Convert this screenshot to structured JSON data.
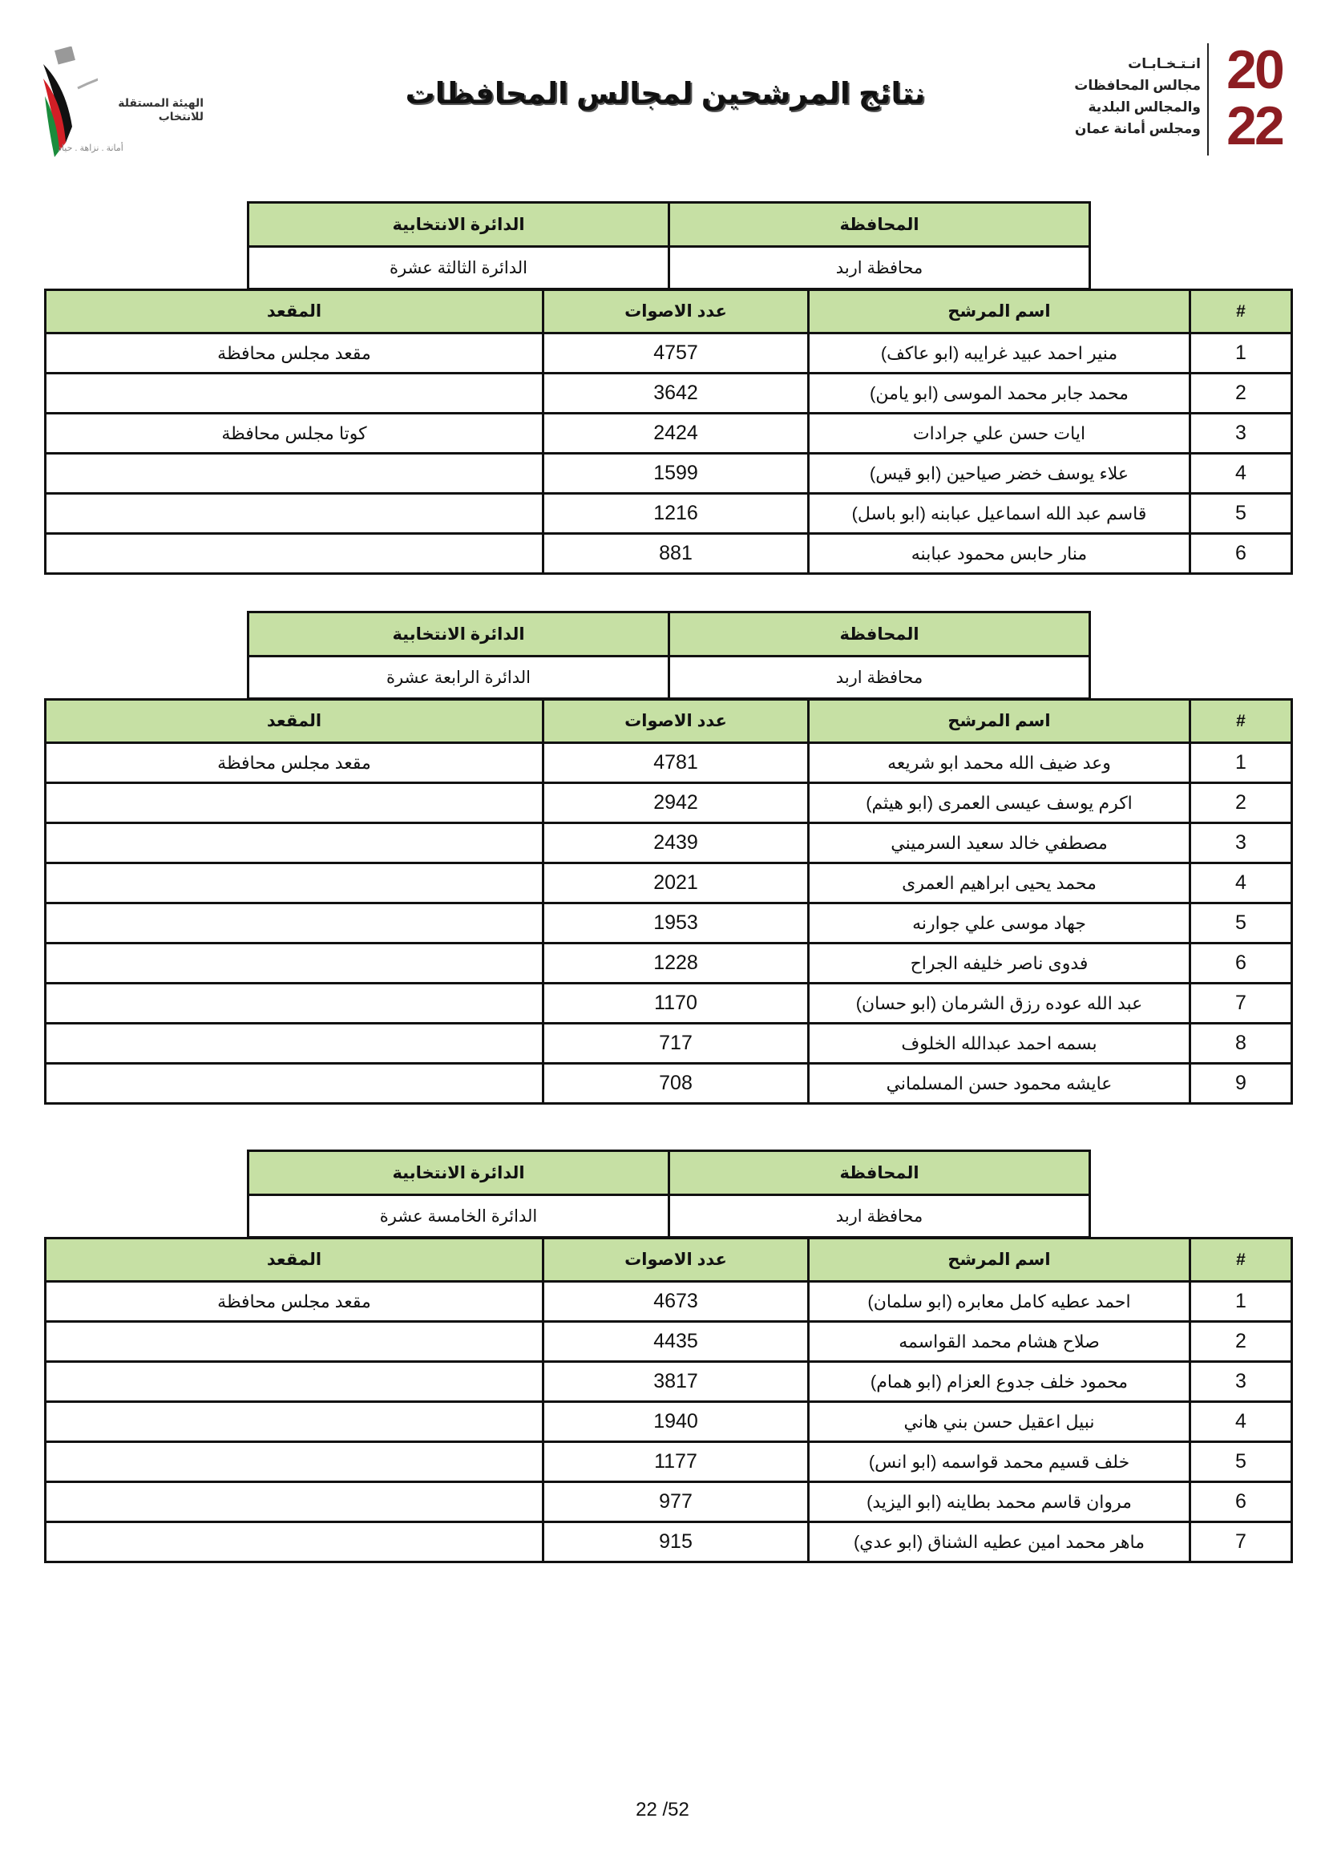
{
  "header": {
    "title": "نتائج المرشحين لمجالس المحافظات",
    "left_logo": {
      "name": "الهيئة المستقلة للانتخاب",
      "motto": "أمانة . نزاهة . حياد"
    },
    "right_logo": {
      "lines": [
        "انـتـخـابـات",
        "مجالس المحافظات",
        "والمجالس البلدية",
        "ومجلس أمانة عمان"
      ],
      "year": "2022"
    }
  },
  "labels": {
    "province": "المحافظة",
    "district": "الدائرة الانتخابية",
    "col_num": "#",
    "col_name": "اسم المرشح",
    "col_votes": "عدد الاصوات",
    "col_seat": "المقعد"
  },
  "colors": {
    "header_fill": "#c6e0a4",
    "brand_red": "#8c1d22"
  },
  "sections": [
    {
      "province": "محافظة اربد",
      "district": "الدائرة الثالثة عشرة",
      "rows": [
        {
          "n": "1",
          "name": "منير احمد عبيد غرايبه (ابو عاكف)",
          "votes": "4757",
          "seat": "مقعد مجلس محافظة"
        },
        {
          "n": "2",
          "name": "محمد جابر محمد الموسى (ابو يامن)",
          "votes": "3642",
          "seat": ""
        },
        {
          "n": "3",
          "name": "ايات حسن علي جرادات",
          "votes": "2424",
          "seat": "كوتا مجلس محافظة"
        },
        {
          "n": "4",
          "name": "علاء يوسف خضر صياحين (ابو قيس)",
          "votes": "1599",
          "seat": ""
        },
        {
          "n": "5",
          "name": "قاسم عبد الله اسماعيل عبابنه (ابو باسل)",
          "votes": "1216",
          "seat": ""
        },
        {
          "n": "6",
          "name": "منار حابس محمود عبابنه",
          "votes": "881",
          "seat": ""
        }
      ]
    },
    {
      "province": "محافظة اربد",
      "district": "الدائرة الرابعة عشرة",
      "rows": [
        {
          "n": "1",
          "name": "وعد ضيف الله محمد ابو شريعه",
          "votes": "4781",
          "seat": "مقعد مجلس محافظة"
        },
        {
          "n": "2",
          "name": "اكرم يوسف عيسى العمرى (ابو هيثم)",
          "votes": "2942",
          "seat": ""
        },
        {
          "n": "3",
          "name": "مصطفي خالد سعيد السرميني",
          "votes": "2439",
          "seat": ""
        },
        {
          "n": "4",
          "name": "محمد يحيى ابراهيم العمرى",
          "votes": "2021",
          "seat": ""
        },
        {
          "n": "5",
          "name": "جهاد موسى علي جوارنه",
          "votes": "1953",
          "seat": ""
        },
        {
          "n": "6",
          "name": "فدوى ناصر خليفه الجراح",
          "votes": "1228",
          "seat": ""
        },
        {
          "n": "7",
          "name": "عبد الله عوده رزق الشرمان (ابو حسان)",
          "votes": "1170",
          "seat": ""
        },
        {
          "n": "8",
          "name": "بسمه احمد عبدالله الخلوف",
          "votes": "717",
          "seat": ""
        },
        {
          "n": "9",
          "name": "عايشه محمود حسن المسلماني",
          "votes": "708",
          "seat": ""
        }
      ]
    },
    {
      "province": "محافظة اربد",
      "district": "الدائرة الخامسة عشرة",
      "rows": [
        {
          "n": "1",
          "name": "احمد عطيه كامل معابره (ابو سلمان)",
          "votes": "4673",
          "seat": "مقعد مجلس محافظة"
        },
        {
          "n": "2",
          "name": "صلاح هشام محمد القواسمه",
          "votes": "4435",
          "seat": ""
        },
        {
          "n": "3",
          "name": "محمود خلف جدوع العزام (ابو همام)",
          "votes": "3817",
          "seat": ""
        },
        {
          "n": "4",
          "name": "نبيل اعقيل حسن بني هاني",
          "votes": "1940",
          "seat": ""
        },
        {
          "n": "5",
          "name": "خلف قسيم محمد قواسمه (ابو انس)",
          "votes": "1177",
          "seat": ""
        },
        {
          "n": "6",
          "name": "مروان قاسم محمد بطاينه (ابو اليزيد)",
          "votes": "977",
          "seat": ""
        },
        {
          "n": "7",
          "name": "ماهر محمد امين عطيه الشناق (ابو عدي)",
          "votes": "915",
          "seat": ""
        }
      ]
    }
  ],
  "footer": {
    "page": "22 /52"
  }
}
